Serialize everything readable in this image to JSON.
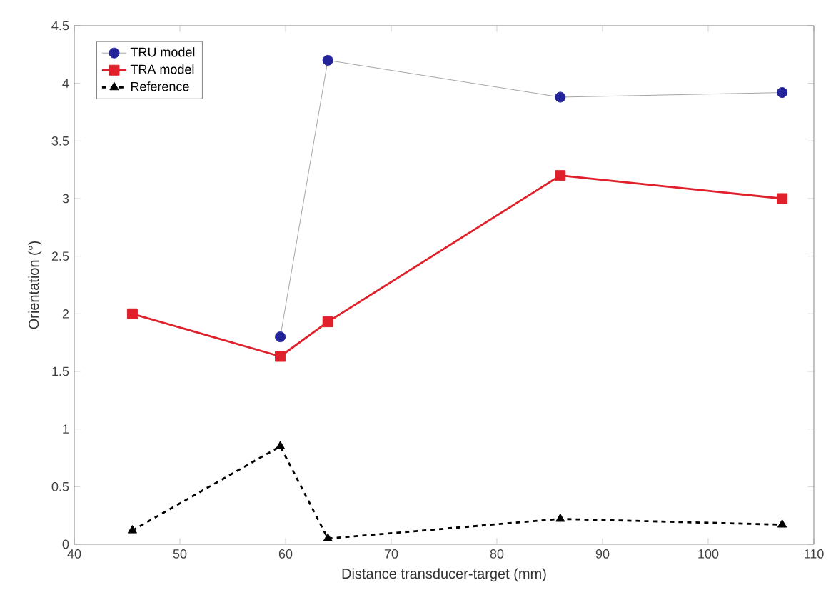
{
  "chart_data": {
    "type": "line",
    "xlabel": "Distance transducer-target (mm)",
    "ylabel": "Orientation (°)",
    "x": [
      45.5,
      59.5,
      64,
      86,
      107
    ],
    "series": [
      {
        "name": "TRU model",
        "color": "#23239a",
        "marker": "circle",
        "values": [
          null,
          1.8,
          4.2,
          3.88,
          3.92
        ]
      },
      {
        "name": "TRA model",
        "color": "#e0202a",
        "marker": "square",
        "values": [
          2.0,
          1.63,
          1.93,
          3.2,
          3.0
        ]
      },
      {
        "name": "Reference",
        "color": "#000000",
        "marker": "triangle",
        "line_style": "dashed",
        "values": [
          0.12,
          0.85,
          0.05,
          0.22,
          0.17
        ]
      }
    ],
    "xlim": [
      40,
      110
    ],
    "ylim": [
      0,
      4.5
    ],
    "xticks": [
      40,
      50,
      60,
      70,
      80,
      90,
      100,
      110
    ],
    "yticks": [
      0,
      0.5,
      1,
      1.5,
      2,
      2.5,
      3,
      3.5,
      4,
      4.5
    ],
    "legend": "top left",
    "grid": false
  }
}
